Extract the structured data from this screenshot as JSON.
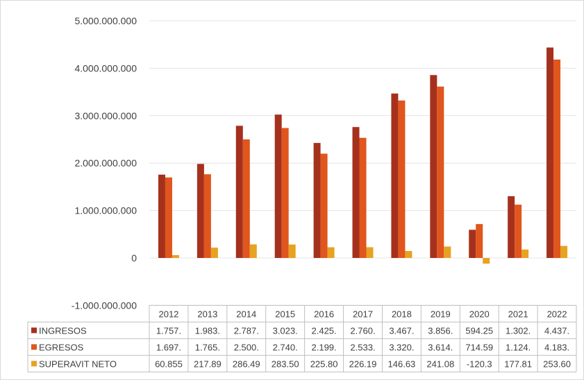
{
  "chart_data": {
    "type": "bar",
    "categories": [
      "2012",
      "2013",
      "2014",
      "2015",
      "2016",
      "2017",
      "2018",
      "2019",
      "2020",
      "2021",
      "2022"
    ],
    "ylim": [
      -1000000000,
      5000000000
    ],
    "yticks": [
      -1000000000,
      0,
      1000000000,
      2000000000,
      3000000000,
      4000000000,
      5000000000
    ],
    "ytick_labels": [
      "-1.000.000.000",
      "0",
      "1.000.000.000",
      "2.000.000.000",
      "3.000.000.000",
      "4.000.000.000",
      "5.000.000.000"
    ],
    "grid": true,
    "legend": "data-table",
    "series": [
      {
        "name": "INGRESOS",
        "color": "#a5311d",
        "values": [
          1757000000,
          1983000000,
          2787000000,
          3023000000,
          2425000000,
          2760000000,
          3467000000,
          3856000000,
          594250000,
          1302000000,
          4437000000
        ],
        "table_labels": [
          "1.757.",
          "1.983.",
          "2.787.",
          "3.023.",
          "2.425.",
          "2.760.",
          "3.467.",
          "3.856.",
          "594.25",
          "1.302.",
          "4.437."
        ]
      },
      {
        "name": "EGRESOS",
        "color": "#e0561d",
        "values": [
          1697000000,
          1765000000,
          2500000000,
          2740000000,
          2199000000,
          2533000000,
          3320000000,
          3614000000,
          714590000,
          1124000000,
          4183000000
        ],
        "table_labels": [
          "1.697.",
          "1.765.",
          "2.500.",
          "2.740.",
          "2.199.",
          "2.533.",
          "3.320.",
          "3.614.",
          "714.59",
          "1.124.",
          "4.183."
        ]
      },
      {
        "name": "SUPERAVIT NETO",
        "color": "#e8a221",
        "values": [
          60855000,
          217890000,
          286490000,
          283500000,
          225800000,
          226190000,
          146630000,
          241080000,
          -120300000,
          177810000,
          253600000
        ],
        "table_labels": [
          "60.855",
          "217.89",
          "286.49",
          "283.50",
          "225.80",
          "226.19",
          "146.63",
          "241.08",
          "-120.3",
          "177.81",
          "253.60"
        ]
      }
    ]
  }
}
